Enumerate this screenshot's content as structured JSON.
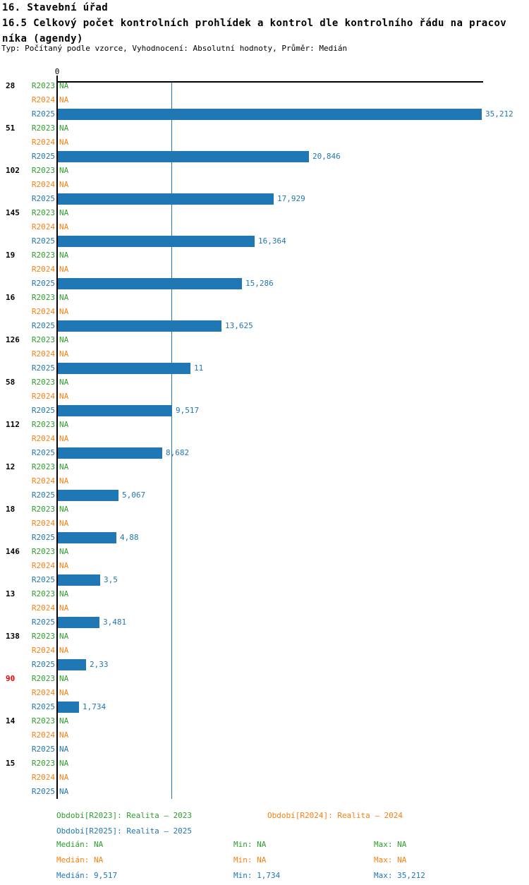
{
  "header": {
    "title": "16. Stavební úřad",
    "subtitle_line1": "16.5 Celkový počet kontrolních prohlídek a kontrol dle kontrolního řádu na pracov",
    "subtitle_line2": "níka (agendy)",
    "meta": "Typ: Počítaný podle vzorce, Vyhodnocení: Absolutní hodnoty, Průměr: Medián"
  },
  "colors": {
    "r2023_green": "#2ca02c",
    "r2024_orange": "#ff7f0e",
    "r2025_blue": "#1f77b4",
    "bar": "#1f77b4",
    "highlight_red": "#ee0000",
    "axis": "#000000"
  },
  "chart_data": {
    "type": "bar",
    "orientation": "horizontal",
    "title": "16.5 Celkový počet kontrolních prohlídek a kontrol dle kontrolního řádu na pracovníka (agendy)",
    "x_axis": {
      "zero_label": "0",
      "xmin": 0,
      "xmax": 35.4,
      "median_reference_line": 9.517,
      "gridlines": false
    },
    "series_labels": [
      "R2023",
      "R2024",
      "R2025"
    ],
    "na_text": "NA",
    "legend_position": "bottom",
    "groups": [
      {
        "label": "28",
        "label_red": false,
        "r2023": null,
        "r2024": null,
        "r2025": 35.212,
        "r2025_text": "35,212"
      },
      {
        "label": "51",
        "label_red": false,
        "r2023": null,
        "r2024": null,
        "r2025": 20.846,
        "r2025_text": "20,846"
      },
      {
        "label": "102",
        "label_red": false,
        "r2023": null,
        "r2024": null,
        "r2025": 17.929,
        "r2025_text": "17,929"
      },
      {
        "label": "145",
        "label_red": false,
        "r2023": null,
        "r2024": null,
        "r2025": 16.364,
        "r2025_text": "16,364"
      },
      {
        "label": "19",
        "label_red": false,
        "r2023": null,
        "r2024": null,
        "r2025": 15.286,
        "r2025_text": "15,286"
      },
      {
        "label": "16",
        "label_red": false,
        "r2023": null,
        "r2024": null,
        "r2025": 13.625,
        "r2025_text": "13,625"
      },
      {
        "label": "126",
        "label_red": false,
        "r2023": null,
        "r2024": null,
        "r2025": 11,
        "r2025_text": "11"
      },
      {
        "label": "58",
        "label_red": false,
        "r2023": null,
        "r2024": null,
        "r2025": 9.517,
        "r2025_text": "9,517"
      },
      {
        "label": "112",
        "label_red": false,
        "r2023": null,
        "r2024": null,
        "r2025": 8.682,
        "r2025_text": "8,682"
      },
      {
        "label": "12",
        "label_red": false,
        "r2023": null,
        "r2024": null,
        "r2025": 5.067,
        "r2025_text": "5,067"
      },
      {
        "label": "18",
        "label_red": false,
        "r2023": null,
        "r2024": null,
        "r2025": 4.88,
        "r2025_text": "4,88"
      },
      {
        "label": "146",
        "label_red": false,
        "r2023": null,
        "r2024": null,
        "r2025": 3.5,
        "r2025_text": "3,5"
      },
      {
        "label": "13",
        "label_red": false,
        "r2023": null,
        "r2024": null,
        "r2025": 3.481,
        "r2025_text": "3,481"
      },
      {
        "label": "138",
        "label_red": false,
        "r2023": null,
        "r2024": null,
        "r2025": 2.33,
        "r2025_text": "2,33"
      },
      {
        "label": "90",
        "label_red": true,
        "r2023": null,
        "r2024": null,
        "r2025": 1.734,
        "r2025_text": "1,734"
      },
      {
        "label": "14",
        "label_red": false,
        "r2023": null,
        "r2024": null,
        "r2025": null,
        "r2025_text": null
      },
      {
        "label": "15",
        "label_red": false,
        "r2023": null,
        "r2024": null,
        "r2025": null,
        "r2025_text": null
      }
    ]
  },
  "legend": {
    "r2023": "Období[R2023]: Realita – 2023",
    "r2024": "Období[R2024]: Realita – 2024",
    "r2025": "Období[R2025]: Realita – 2025"
  },
  "stats": [
    {
      "series": "r2023",
      "median": "Medián: NA",
      "min": "Min: NA",
      "max": "Max: NA"
    },
    {
      "series": "r2024",
      "median": "Medián: NA",
      "min": "Min: NA",
      "max": "Max: NA"
    },
    {
      "series": "r2025",
      "median": "Medián: 9,517",
      "min": "Min: 1,734",
      "max": "Max: 35,212"
    }
  ]
}
